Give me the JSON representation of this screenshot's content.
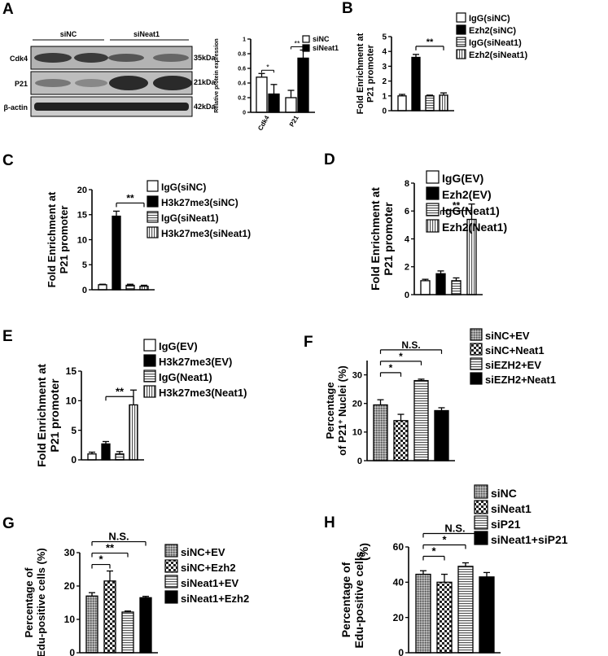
{
  "panel_letters": {
    "A": "A",
    "B": "B",
    "C": "C",
    "D": "D",
    "E": "E",
    "F": "F",
    "G": "G",
    "H": "H"
  },
  "blot": {
    "groups": [
      "siNC",
      "siNeat1"
    ],
    "rows": [
      {
        "label": "Cdk4",
        "kda": "35kDa"
      },
      {
        "label": "P21",
        "kda": "21kDa"
      },
      {
        "label": "β-actin",
        "kda": "42kDa"
      }
    ]
  },
  "chart_data": [
    {
      "panel": "A",
      "type": "bar",
      "ylabel": "Relative protein expression",
      "categories": [
        "Cdk4",
        "P21"
      ],
      "ylim": [
        0,
        1.0
      ],
      "yticks": [
        0,
        0.2,
        0.4,
        0.6,
        0.8,
        1.0
      ],
      "series": [
        {
          "name": "siNC",
          "values": [
            0.48,
            0.2
          ],
          "errors": [
            0.05,
            0.1
          ],
          "pattern": "white"
        },
        {
          "name": "siNeat1",
          "values": [
            0.25,
            0.74
          ],
          "errors": [
            0.13,
            0.11
          ],
          "pattern": "black"
        }
      ],
      "significance": [
        {
          "cat": 0,
          "text": "*"
        },
        {
          "cat": 1,
          "text": "**"
        }
      ],
      "legend_position": "top-right"
    },
    {
      "panel": "B",
      "type": "bar",
      "ylabel": "Fold Enrichment at P21 promoter",
      "ylim": [
        0,
        5
      ],
      "yticks": [
        0,
        1,
        2,
        3,
        4,
        5
      ],
      "series": [
        {
          "name": "IgG(siNC)",
          "values": [
            1.0
          ],
          "errors": [
            0.1
          ],
          "pattern": "white"
        },
        {
          "name": "Ezh2(siNC)",
          "values": [
            3.6
          ],
          "errors": [
            0.2
          ],
          "pattern": "black"
        },
        {
          "name": "IgG(siNeat1)",
          "values": [
            1.0
          ],
          "errors": [
            0.05
          ],
          "pattern": "hstripe"
        },
        {
          "name": "Ezh2(siNeat1)",
          "values": [
            1.05
          ],
          "errors": [
            0.15
          ],
          "pattern": "vstripe"
        }
      ],
      "significance": [
        {
          "from": 1,
          "to": 3,
          "text": "**"
        }
      ],
      "legend_position": "top-right"
    },
    {
      "panel": "C",
      "type": "bar",
      "ylabel": "Fold Enrichment at P21 promoter",
      "ylim": [
        0,
        20
      ],
      "yticks": [
        0,
        5,
        10,
        15,
        20
      ],
      "series": [
        {
          "name": "IgG(siNC)",
          "values": [
            1.0
          ],
          "errors": [
            0.1
          ],
          "pattern": "white"
        },
        {
          "name": "H3k27me3(siNC)",
          "values": [
            14.7
          ],
          "errors": [
            1.0
          ],
          "pattern": "black"
        },
        {
          "name": "IgG(siNeat1)",
          "values": [
            0.9
          ],
          "errors": [
            0.2
          ],
          "pattern": "hstripe"
        },
        {
          "name": "H3k27me3(siNeat1)",
          "values": [
            0.7
          ],
          "errors": [
            0.2
          ],
          "pattern": "vstripe"
        }
      ],
      "significance": [
        {
          "from": 1,
          "to": 3,
          "text": "**"
        }
      ],
      "legend_position": "top-right"
    },
    {
      "panel": "D",
      "type": "bar",
      "ylabel": "Fold Enrichment at P21 promoter",
      "ylim": [
        0,
        8
      ],
      "yticks": [
        0,
        2,
        4,
        6,
        8
      ],
      "series": [
        {
          "name": "IgG(EV)",
          "values": [
            1.0
          ],
          "errors": [
            0.1
          ],
          "pattern": "white"
        },
        {
          "name": "Ezh2(EV)",
          "values": [
            1.5
          ],
          "errors": [
            0.2
          ],
          "pattern": "black"
        },
        {
          "name": "IgG(Neat1)",
          "values": [
            1.0
          ],
          "errors": [
            0.2
          ],
          "pattern": "hstripe"
        },
        {
          "name": "Ezh2(Neat1)",
          "values": [
            5.4
          ],
          "errors": [
            1.1
          ],
          "pattern": "vstripe"
        }
      ],
      "significance": [
        {
          "from": 1,
          "to": 3,
          "text": "**"
        }
      ],
      "legend_position": "top-right"
    },
    {
      "panel": "E",
      "type": "bar",
      "ylabel": "Fold Enrichment at P21 promoter",
      "ylim": [
        0,
        15
      ],
      "yticks": [
        0,
        5,
        10,
        15
      ],
      "series": [
        {
          "name": "IgG(EV)",
          "values": [
            1.0
          ],
          "errors": [
            0.3
          ],
          "pattern": "white"
        },
        {
          "name": "H3k27me3(EV)",
          "values": [
            2.7
          ],
          "errors": [
            0.4
          ],
          "pattern": "black"
        },
        {
          "name": "IgG(Neat1)",
          "values": [
            1.0
          ],
          "errors": [
            0.4
          ],
          "pattern": "hstripe"
        },
        {
          "name": "H3k27me3(Neat1)",
          "values": [
            9.3
          ],
          "errors": [
            2.5
          ],
          "pattern": "vstripe"
        }
      ],
      "significance": [
        {
          "from": 1,
          "to": 3,
          "text": "**"
        }
      ],
      "legend_position": "top-right"
    },
    {
      "panel": "F",
      "type": "bar",
      "ylabel_parts": [
        "Percentage",
        "of P21",
        "+",
        " Nuclei (%)"
      ],
      "ylim": [
        0,
        35
      ],
      "yticks": [
        0,
        10,
        20,
        30
      ],
      "series": [
        {
          "name": "siNC+EV",
          "values": [
            19.5
          ],
          "errors": [
            1.8
          ],
          "pattern": "dots"
        },
        {
          "name": "siNC+Neat1",
          "values": [
            14.0
          ],
          "errors": [
            2.2
          ],
          "pattern": "checker"
        },
        {
          "name": "siEZH2+EV",
          "values": [
            28.0
          ],
          "errors": [
            0.5
          ],
          "pattern": "hstripe"
        },
        {
          "name": "siEZH2+Neat1",
          "values": [
            17.5
          ],
          "errors": [
            1.0
          ],
          "pattern": "black"
        }
      ],
      "significance": [
        {
          "from": 0,
          "to": 1,
          "text": "*"
        },
        {
          "from": 0,
          "to": 2,
          "text": "*"
        },
        {
          "from": 0,
          "to": 3,
          "text": "N.S."
        }
      ],
      "legend_position": "top-right"
    },
    {
      "panel": "G",
      "type": "bar",
      "ylabel_lines": [
        "Percentage of",
        "Edu-positive cells (%)"
      ],
      "ylim": [
        0,
        30
      ],
      "yticks": [
        0,
        10,
        20,
        30
      ],
      "series": [
        {
          "name": "siNC+EV",
          "values": [
            17.0
          ],
          "errors": [
            1.0
          ],
          "pattern": "dots"
        },
        {
          "name": "siNC+Ezh2",
          "values": [
            21.5
          ],
          "errors": [
            3.0
          ],
          "pattern": "checker"
        },
        {
          "name": "siNeat1+EV",
          "values": [
            12.2
          ],
          "errors": [
            0.3
          ],
          "pattern": "hstripe"
        },
        {
          "name": "siNeat1+Ezh2",
          "values": [
            16.5
          ],
          "errors": [
            0.4
          ],
          "pattern": "black"
        }
      ],
      "significance": [
        {
          "from": 0,
          "to": 1,
          "text": "*"
        },
        {
          "from": 0,
          "to": 2,
          "text": "**"
        },
        {
          "from": 0,
          "to": 3,
          "text": "N.S."
        }
      ],
      "legend_position": "top-right"
    },
    {
      "panel": "H",
      "type": "bar",
      "ylabel_lines": [
        "Percentage of",
        "Edu-positive cells"
      ],
      "ylabel_suffix": "(%)",
      "ylim": [
        0,
        60
      ],
      "yticks": [
        0,
        20,
        40,
        60
      ],
      "series": [
        {
          "name": "siNC",
          "values": [
            44.5
          ],
          "errors": [
            2.0
          ],
          "pattern": "dots"
        },
        {
          "name": "siNeat1",
          "values": [
            40.0
          ],
          "errors": [
            4.5
          ],
          "pattern": "checker"
        },
        {
          "name": "siP21",
          "values": [
            49.0
          ],
          "errors": [
            2.0
          ],
          "pattern": "hstripe"
        },
        {
          "name": "siNeat1+siP21",
          "values": [
            43.0
          ],
          "errors": [
            2.5
          ],
          "pattern": "black"
        }
      ],
      "significance": [
        {
          "from": 0,
          "to": 1,
          "text": "*"
        },
        {
          "from": 0,
          "to": 2,
          "text": "*"
        },
        {
          "from": 0,
          "to": 3,
          "text": "N.S."
        }
      ],
      "legend_position": "top-right"
    }
  ]
}
